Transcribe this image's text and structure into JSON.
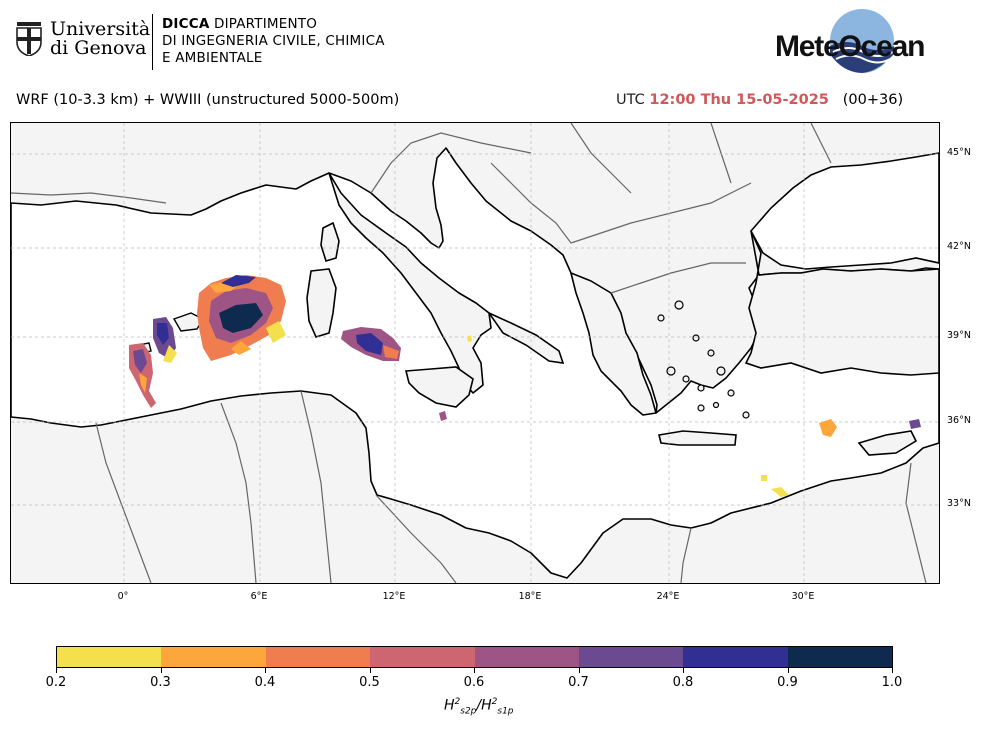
{
  "header": {
    "university": {
      "line1": "Università",
      "line2": "di Genova"
    },
    "department": {
      "abbr": "DICCA",
      "line1_rest": " DIPARTIMENTO",
      "line2": "DI INGEGNERIA CIVILE, CHIMICA",
      "line3": "E AMBIENTALE"
    },
    "brand": "MeteOcean",
    "model_title": "WRF (10-3.3 km) + WWIII (unstructured 5000-500m)",
    "time": {
      "utc_label": "UTC",
      "stamp": "12:00 Thu 15-05-2025",
      "forecast": "(00+36)"
    }
  },
  "map": {
    "lat_labels": [
      "45°N",
      "42°N",
      "39°N",
      "36°N",
      "33°N"
    ],
    "lon_labels": [
      "0°",
      "6°E",
      "12°E",
      "18°E",
      "24°E",
      "30°E"
    ],
    "land_color": "#f4f4f4",
    "sea_color": "#ffffff",
    "coastline_color": "#000000",
    "border_color": "#666666",
    "grid": true
  },
  "colorbar": {
    "ticks": [
      "0.2",
      "0.3",
      "0.4",
      "0.5",
      "0.6",
      "0.7",
      "0.8",
      "0.9",
      "1.0"
    ],
    "colors": [
      "#f4e04d",
      "#fca63b",
      "#f07d50",
      "#cd6670",
      "#9e5585",
      "#6b4a92",
      "#322f94",
      "#0e2a4e"
    ],
    "title_main": "H",
    "title_sub1": "s2p",
    "title_sup1": "2",
    "title_sub2": "s1p",
    "title_sup2": "2"
  }
}
